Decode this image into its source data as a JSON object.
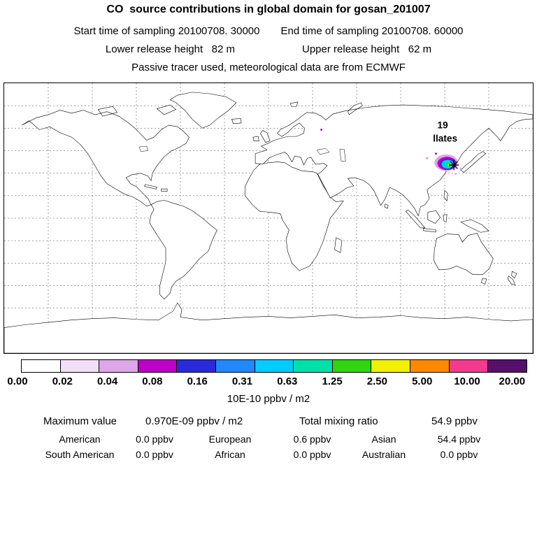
{
  "title": "CO  source contributions in global domain for gosan_201007",
  "header": {
    "start_time": "Start time of sampling 20100708. 30000",
    "end_time": "End time of sampling 20100708. 60000",
    "lower_release": "Lower release height   82 m",
    "upper_release": "Upper release height   62 m",
    "tracer_note": "Passive tracer used, meteorological data are from ECMWF"
  },
  "map": {
    "overlay_labels": {
      "0": "19",
      "1": "llates"
    },
    "station_marker": "asterisk-receptor-gosan"
  },
  "colorbar": {
    "tick_labels": [
      "0.00",
      "0.02",
      "0.04",
      "0.08",
      "0.16",
      "0.31",
      "0.63",
      "1.25",
      "2.50",
      "5.00",
      "10.00",
      "20.00"
    ],
    "unit_label": "10E-10 ppbv / m2",
    "colors": [
      "#FFFFFF",
      "#F2DEF6",
      "#DCA6E8",
      "#BC00C8",
      "#2A2ADB",
      "#2288FF",
      "#00CCFF",
      "#00E0A8",
      "#30D510",
      "#F0F000",
      "#FF8800",
      "#F43A8C",
      "#55106B"
    ]
  },
  "stats": {
    "max_label": "Maximum value",
    "max_value": "0.970E-09 ppbv / m2",
    "total_label": "Total mixing ratio",
    "total_value": "54.9 ppbv",
    "rows": [
      {
        "c1": "American",
        "v1": "0.0 ppbv",
        "c2": "European",
        "v2": "0.6 ppbv",
        "c3": "Asian",
        "v3": "54.4 ppbv"
      },
      {
        "c1": "South American",
        "v1": "0.0 ppbv",
        "c2": "African",
        "v2": "0.0 ppbv",
        "c3": "Australian",
        "v3": "0.0 ppbv"
      }
    ]
  },
  "chart_data": {
    "type": "heatmap",
    "title": "CO source contributions in global domain for gosan_201007",
    "projection": "equirectangular world map, lon -180..180, lat -90..90",
    "grid": "dashed graticule, 30 deg longitude x 15 deg latitude",
    "colorbar_levels": [
      0.0,
      0.02,
      0.04,
      0.08,
      0.16,
      0.31,
      0.63,
      1.25,
      2.5,
      5.0,
      10.0,
      20.0
    ],
    "colorbar_unit": "10E-10 ppbv / m2",
    "receptor": {
      "name": "gosan",
      "approx_lon": 126,
      "approx_lat": 34
    },
    "plume": {
      "description": "source-contribution hotspot over eastern China / Yellow Sea / Korea, cyan-green core with magenta-violet fringe; isolated violet speck over western Russia",
      "approx_lon_range": [
        113,
        133
      ],
      "approx_lat_range": [
        30,
        42
      ],
      "peak_value": "0.970E-09 ppbv / m2"
    },
    "stats": {
      "maximum_value": "0.970E-09 ppbv / m2",
      "total_mixing_ratio_ppbv": 54.9,
      "contributions_ppbv": {
        "American": 0.0,
        "European": 0.6,
        "Asian": 54.4,
        "South American": 0.0,
        "African": 0.0,
        "Australian": 0.0
      }
    }
  }
}
